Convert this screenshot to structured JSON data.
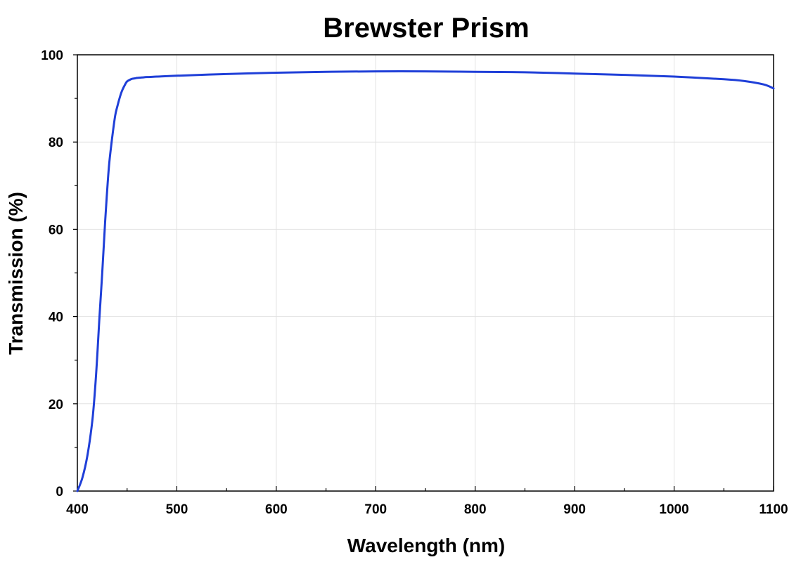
{
  "chart_data": {
    "type": "line",
    "title": "Brewster Prism",
    "xlabel": "Wavelength (nm)",
    "ylabel": "Transmission (%)",
    "xlim": [
      400,
      1100
    ],
    "ylim": [
      0,
      100
    ],
    "x_ticks": [
      "400",
      "500",
      "600",
      "700",
      "800",
      "900",
      "1000",
      "1100"
    ],
    "y_ticks": [
      "0",
      "20",
      "40",
      "60",
      "80",
      "100"
    ],
    "grid": true,
    "line_color": "#1f3fd8",
    "series": [
      {
        "x": [
          400,
          405,
          410,
          415,
          418,
          420,
          422,
          425,
          428,
          430,
          432,
          435,
          438,
          440,
          443,
          445,
          448,
          450,
          453,
          455,
          458,
          460,
          465,
          470,
          480,
          500,
          550,
          600,
          650,
          700,
          750,
          800,
          850,
          900,
          950,
          1000,
          1050,
          1070,
          1090,
          1100
        ],
        "y": [
          0,
          3,
          8,
          16,
          24,
          31,
          39,
          50,
          62,
          69,
          75,
          81,
          86,
          88,
          90.5,
          91.8,
          93.2,
          93.9,
          94.3,
          94.5,
          94.6,
          94.7,
          94.8,
          94.9,
          95.0,
          95.2,
          95.6,
          95.9,
          96.1,
          96.2,
          96.2,
          96.1,
          96.0,
          95.7,
          95.4,
          95.0,
          94.4,
          94.0,
          93.2,
          92.3
        ]
      }
    ]
  }
}
